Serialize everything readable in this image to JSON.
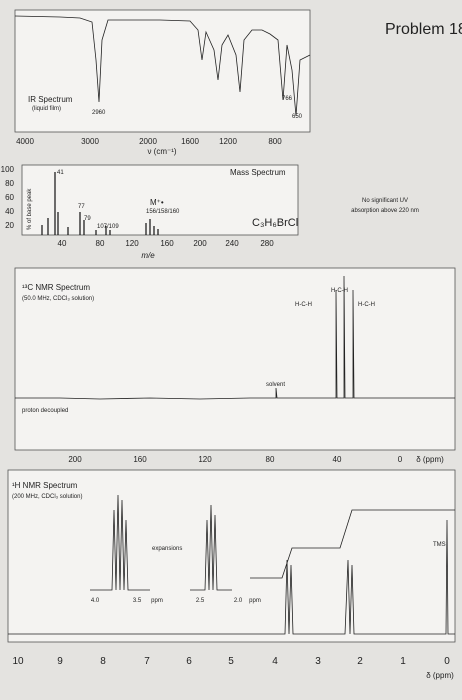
{
  "header": {
    "title": "Problem 18"
  },
  "ir": {
    "title": "IR Spectrum",
    "subtitle": "(liquid film)",
    "peak_labels": [
      "2960",
      "766",
      "650"
    ],
    "ticks": [
      "4000",
      "3000",
      "2000",
      "1600",
      "1200",
      "800"
    ],
    "axis_label": "ν (cm⁻¹)"
  },
  "mass": {
    "title": "Mass Spectrum",
    "yticks": [
      "100",
      "80",
      "60",
      "40",
      "20"
    ],
    "axis_label_y": "% of base peak",
    "peak_labels": [
      "41",
      "77",
      "79",
      "107/109",
      "M⁺•",
      "156/158/160"
    ],
    "formula": "C₃H₆BrCl",
    "xticks": [
      "40",
      "80",
      "120",
      "160",
      "200",
      "240",
      "280"
    ],
    "axis_label_x": "m/e"
  },
  "uv": {
    "lines": [
      "No significant UV",
      "absorption above 220 nm"
    ]
  },
  "c13": {
    "title": "¹³C NMR Spectrum",
    "subtitle": "(50.0 MHz, CDCl₃ solution)",
    "note": "proton decoupled",
    "solvent": "solvent",
    "structures": [
      "H-C-H",
      "H-C-H",
      "H-C-H"
    ],
    "ticks": [
      "200",
      "160",
      "120",
      "80",
      "40",
      "0"
    ],
    "axis_label": "δ (ppm)"
  },
  "h1": {
    "title": "¹H NMR Spectrum",
    "subtitle": "(200 MHz, CDCl₃ solution)",
    "expansions": "expansions",
    "tms": "TMS",
    "inset_ticks": [
      "4.0",
      "3.5",
      "ppm",
      "2.5",
      "2.0",
      "ppm"
    ],
    "ticks": [
      "10",
      "9",
      "8",
      "7",
      "6",
      "5",
      "4",
      "3",
      "2",
      "1",
      "0"
    ],
    "axis_label": "δ (ppm)"
  }
}
